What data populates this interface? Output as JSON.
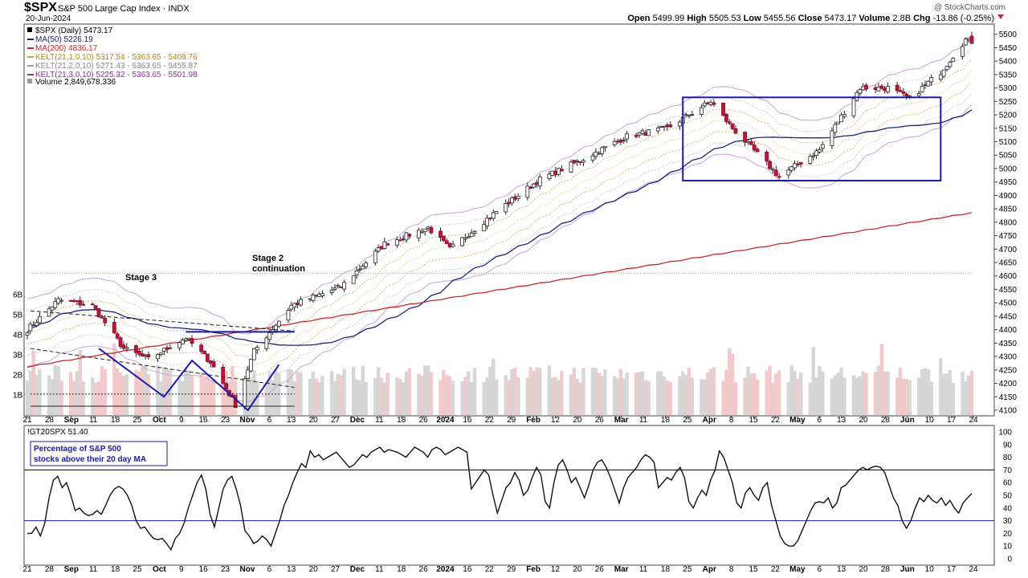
{
  "header": {
    "symbol": "$SPX",
    "name": "S&P 500 Large Cap Index",
    "exchange": "INDX",
    "date": "20-Jun-2024",
    "copyright": "@ StockCharts.com",
    "ohlc": {
      "open_label": "Open",
      "open": "5499.99",
      "high_label": "High",
      "high": "5505.53",
      "low_label": "Low",
      "low": "5455.56",
      "close_label": "Close",
      "close": "5473.17",
      "volume_label": "Volume",
      "volume": "2.8B",
      "chg_label": "Chg",
      "chg": "-13.86 (-0.25%)"
    }
  },
  "legend": [
    {
      "text": "$SPX (Daily) 5473.17",
      "color": "#000000"
    },
    {
      "text": "MA(50) 5226.19",
      "color": "#1a237e"
    },
    {
      "text": "MA(200) 4836.17",
      "color": "#c62828"
    },
    {
      "text": "KELT(21,1.0,10) 5317.54 - 5363.65 - 5409.76",
      "color": "#c8a24a"
    },
    {
      "text": "KELT(21,2.0,10) 5271.43 - 5363.65 - 5455.87",
      "color": "#9e9e9e"
    },
    {
      "text": "KELT(21,3.0,10) 5225.32 - 5363.65 - 5501.98",
      "color": "#9c27b0"
    },
    {
      "text": "Volume 2,849,678,336",
      "color": "#000000"
    }
  ],
  "annotations": {
    "stage3": "Stage 3",
    "stage2_line1": "Stage 2",
    "stage2_line2": "continuation"
  },
  "lower_panel": {
    "label": "!GT20SPX 51.40",
    "box_line1": "Percentage of S&P 500",
    "box_line2": "stocks above their 20 day MA"
  },
  "chart_data": [
    {
      "type": "candlestick",
      "title": "$SPX (Daily)",
      "ylim": [
        4100,
        5520
      ],
      "y_ticks": [
        4100,
        4150,
        4200,
        4250,
        4300,
        4350,
        4400,
        4450,
        4500,
        4550,
        4600,
        4650,
        4700,
        4750,
        4800,
        4850,
        4900,
        4950,
        5000,
        5050,
        5100,
        5150,
        5200,
        5250,
        5300,
        5350,
        5400,
        5450,
        5500
      ],
      "volume_ticks": [
        "1B",
        "2B",
        "3B",
        "4B",
        "5B",
        "6B"
      ],
      "x_ticks": [
        "21",
        "28",
        "Sep",
        "11",
        "18",
        "25",
        "Oct",
        "9",
        "16",
        "23",
        "Nov",
        "6",
        "13",
        "20",
        "27",
        "Dec",
        "11",
        "18",
        "26",
        "2024",
        "16",
        "22",
        "29",
        "Feb",
        "12",
        "20",
        "26",
        "Mar",
        "11",
        "18",
        "25",
        "Apr",
        "8",
        "15",
        "22",
        "May",
        "6",
        "13",
        "20",
        "28",
        "Jun",
        "10",
        "17",
        "24"
      ],
      "close_path": [
        [
          "2023-08-21",
          4400
        ],
        [
          "2023-08-31",
          4510
        ],
        [
          "2023-09-11",
          4490
        ],
        [
          "2023-09-21",
          4330
        ],
        [
          "2023-09-29",
          4290
        ],
        [
          "2023-10-11",
          4370
        ],
        [
          "2023-10-19",
          4280
        ],
        [
          "2023-10-27",
          4120
        ],
        [
          "2023-11-02",
          4320
        ],
        [
          "2023-11-14",
          4490
        ],
        [
          "2023-11-30",
          4560
        ],
        [
          "2023-12-14",
          4720
        ],
        [
          "2023-12-28",
          4780
        ],
        [
          "2024-01-04",
          4700
        ],
        [
          "2024-01-19",
          4840
        ],
        [
          "2024-02-02",
          4960
        ],
        [
          "2024-02-15",
          5030
        ],
        [
          "2024-03-01",
          5120
        ],
        [
          "2024-03-14",
          5150
        ],
        [
          "2024-03-28",
          5250
        ],
        [
          "2024-04-04",
          5150
        ],
        [
          "2024-04-19",
          4970
        ],
        [
          "2024-05-02",
          5070
        ],
        [
          "2024-05-15",
          5300
        ],
        [
          "2024-05-24",
          5300
        ],
        [
          "2024-05-31",
          5260
        ],
        [
          "2024-06-10",
          5360
        ],
        [
          "2024-06-18",
          5480
        ],
        [
          "2024-06-20",
          5473
        ]
      ],
      "ma50_end": 5226.19,
      "ma200_end": 4836.17,
      "volume_last": "2,849,678,336"
    },
    {
      "type": "line",
      "title": "!GT20SPX",
      "ylim": [
        0,
        100
      ],
      "y_ticks": [
        0,
        10,
        20,
        30,
        40,
        50,
        60,
        70,
        80,
        90,
        100
      ],
      "reference_lines": [
        30,
        70
      ],
      "values": [
        20,
        20,
        25,
        18,
        28,
        48,
        62,
        65,
        56,
        60,
        50,
        38,
        40,
        36,
        34,
        35,
        38,
        35,
        42,
        50,
        55,
        57,
        55,
        50,
        42,
        30,
        24,
        25,
        20,
        16,
        15,
        16,
        12,
        7,
        16,
        20,
        28,
        40,
        50,
        60,
        66,
        55,
        35,
        25,
        40,
        55,
        62,
        65,
        55,
        42,
        22,
        18,
        12,
        14,
        18,
        15,
        10,
        20,
        30,
        42,
        50,
        60,
        68,
        75,
        72,
        85,
        80,
        82,
        78,
        80,
        82,
        84,
        80,
        76,
        72,
        74,
        78,
        82,
        80,
        84,
        86,
        88,
        84,
        86,
        85,
        84,
        82,
        80,
        84,
        88,
        86,
        84,
        80,
        86,
        88,
        86,
        82,
        84,
        86,
        88,
        86,
        84,
        55,
        60,
        65,
        70,
        66,
        50,
        36,
        46,
        56,
        60,
        68,
        62,
        50,
        54,
        64,
        72,
        66,
        45,
        40,
        60,
        74,
        78,
        70,
        60,
        64,
        56,
        48,
        58,
        70,
        76,
        78,
        72,
        64,
        54,
        44,
        56,
        64,
        68,
        72,
        78,
        82,
        80,
        76,
        56,
        60,
        64,
        62,
        68,
        72,
        64,
        45,
        40,
        48,
        54,
        50,
        62,
        70,
        85,
        80,
        70,
        60,
        44,
        40,
        52,
        56,
        50,
        46,
        56,
        60,
        42,
        30,
        18,
        12,
        10,
        10,
        14,
        22,
        30,
        38,
        44,
        45,
        44,
        48,
        40,
        44,
        56,
        58,
        62,
        66,
        70,
        72,
        70,
        72,
        73,
        72,
        68,
        58,
        48,
        42,
        30,
        24,
        30,
        40,
        48,
        45,
        50,
        46,
        44,
        48,
        42,
        46,
        40,
        36,
        44,
        48,
        51.4
      ]
    }
  ]
}
